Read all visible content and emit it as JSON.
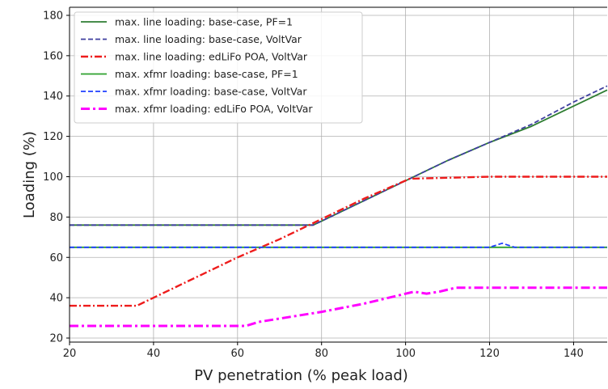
{
  "chart_data": {
    "type": "line",
    "title": "",
    "xlabel": "PV penetration (% peak load)",
    "ylabel": "Loading (%)",
    "xlim": [
      20,
      148
    ],
    "ylim": [
      18,
      184
    ],
    "xticks": [
      20,
      40,
      60,
      80,
      100,
      120,
      140
    ],
    "yticks": [
      20,
      40,
      60,
      80,
      100,
      120,
      140,
      160,
      180
    ],
    "grid": true,
    "legend_position": "top-left",
    "series": [
      {
        "name": "max. line loading: base-case, PF=1",
        "color": "#2e7d32",
        "style": "solid",
        "points": [
          [
            20,
            76
          ],
          [
            78,
            76
          ],
          [
            80,
            78
          ],
          [
            90,
            88
          ],
          [
            100,
            98
          ],
          [
            110,
            108
          ],
          [
            120,
            117
          ],
          [
            130,
            125
          ],
          [
            140,
            135
          ],
          [
            148,
            143
          ]
        ]
      },
      {
        "name": "max. line loading: base-case, VoltVar",
        "color": "#3f3f9f",
        "style": "dashed",
        "points": [
          [
            20,
            76
          ],
          [
            78,
            76
          ],
          [
            80,
            78
          ],
          [
            90,
            88
          ],
          [
            100,
            98
          ],
          [
            110,
            108
          ],
          [
            120,
            117
          ],
          [
            130,
            126
          ],
          [
            140,
            137
          ],
          [
            148,
            145
          ]
        ]
      },
      {
        "name": "max. line loading: edLiFo POA, VoltVar",
        "color": "#ee1c1c",
        "style": "dashdot",
        "points": [
          [
            20,
            36
          ],
          [
            36,
            36
          ],
          [
            50,
            50
          ],
          [
            60,
            60
          ],
          [
            70,
            69
          ],
          [
            80,
            79
          ],
          [
            90,
            89
          ],
          [
            101,
            99
          ],
          [
            120,
            100
          ],
          [
            148,
            100
          ]
        ]
      },
      {
        "name": "max. xfmr loading: base-case, PF=1",
        "color": "#2ca02c",
        "style": "solid",
        "points": [
          [
            20,
            65
          ],
          [
            148,
            65
          ]
        ]
      },
      {
        "name": "max. xfmr loading: base-case, VoltVar",
        "color": "#1f3fff",
        "style": "dashed",
        "points": [
          [
            20,
            65
          ],
          [
            120,
            65
          ],
          [
            123,
            67
          ],
          [
            126,
            65
          ],
          [
            148,
            65
          ]
        ]
      },
      {
        "name": "max. xfmr loading: edLiFo POA, VoltVar",
        "color": "#ff00ff",
        "style": "dashdot-thick",
        "points": [
          [
            20,
            26
          ],
          [
            62,
            26
          ],
          [
            65,
            28
          ],
          [
            80,
            33
          ],
          [
            90,
            37
          ],
          [
            102,
            43
          ],
          [
            105,
            42
          ],
          [
            108,
            43
          ],
          [
            112,
            45
          ],
          [
            148,
            45
          ]
        ]
      }
    ]
  }
}
